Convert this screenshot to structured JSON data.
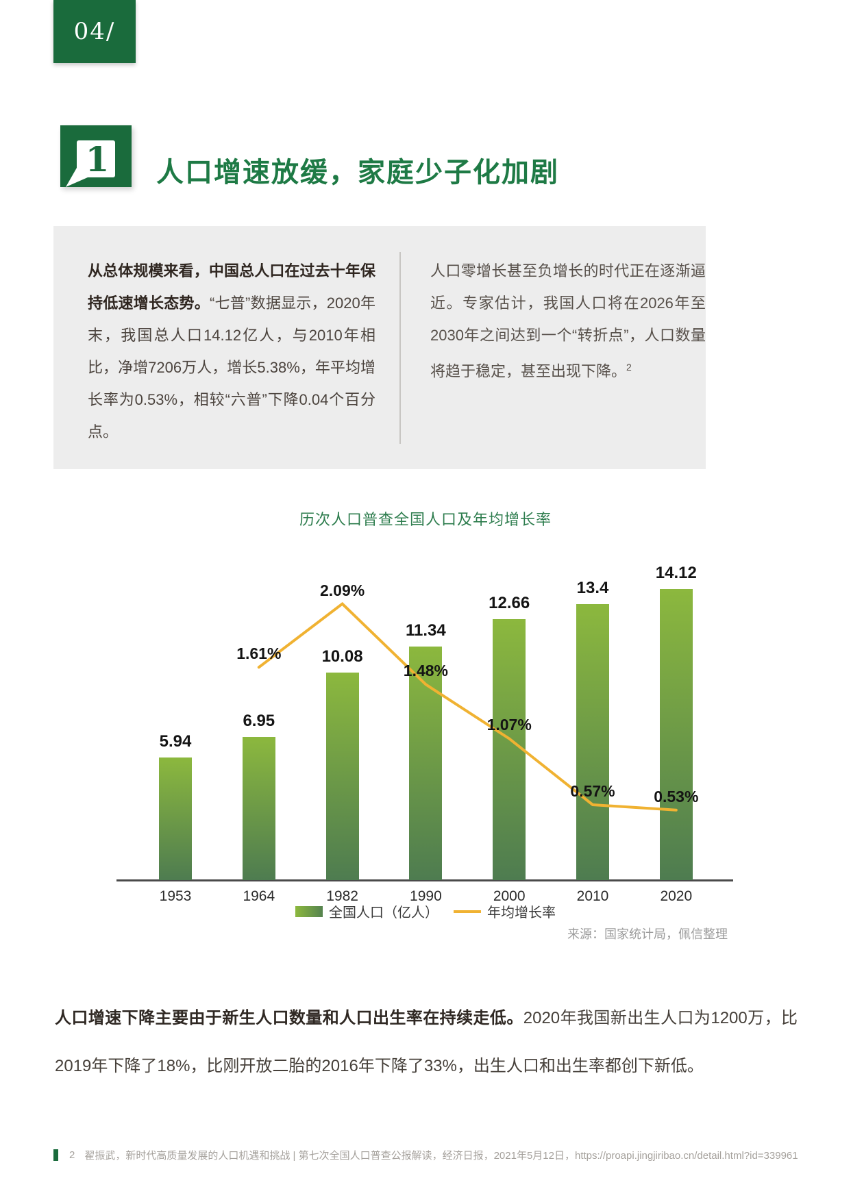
{
  "page": {
    "number": "04/"
  },
  "section": {
    "badge_number": "1",
    "title": "人口增速放缓，家庭少子化加剧"
  },
  "panel": {
    "left": {
      "lead": "从总体规模来看，中国总人口在过去十年保持低速增长态势。",
      "body": "“七普”数据显示，2020年末，我国总人口14.12亿人，与2010年相比，净增7206万人，增长5.38%，年平均增长率为0.53%，相较“六普”下降0.04个百分点。"
    },
    "right": {
      "body": "人口零增长甚至负增长的时代正在逐渐逼近。专家估计，我国人口将在2026年至2030年之间达到一个“转折点”，人口数量将趋于稳定，甚至出现下降。",
      "footnote_ref": "2"
    }
  },
  "chart_data": {
    "type": "bar",
    "title": "历次人口普查全国人口及年均增长率",
    "categories": [
      "1953",
      "1964",
      "1982",
      "1990",
      "2000",
      "2010",
      "2020"
    ],
    "series": [
      {
        "name": "全国人口（亿人）",
        "type": "bar",
        "values": [
          5.94,
          6.95,
          10.08,
          11.34,
          12.66,
          13.4,
          14.12
        ],
        "labels": [
          "5.94",
          "6.95",
          "10.08",
          "11.34",
          "12.66",
          "13.4",
          "14.12"
        ]
      },
      {
        "name": "年均增长率",
        "type": "line",
        "values": [
          null,
          1.61,
          2.09,
          1.48,
          1.07,
          0.57,
          0.53
        ],
        "labels": [
          null,
          "1.61%",
          "2.09%",
          "1.48%",
          "1.07%",
          "0.57%",
          "0.53%"
        ]
      }
    ],
    "ylim": [
      0,
      15
    ],
    "grid": false,
    "legend_position": "bottom",
    "source": "来源：国家统计局，佩信整理",
    "colors": {
      "bar_top": "#8CB83E",
      "bar_bottom": "#4E7C50",
      "line": "#F0B232"
    }
  },
  "body_paragraph": {
    "lead": "人口增速下降主要由于新生人口数量和人口出生率在持续走低。",
    "text": "2020年我国新出生人口为1200万，比2019年下降了18%，比刚开放二胎的2016年下降了33%，出生人口和出生率都创下新低。"
  },
  "footer": {
    "ref_number": "2",
    "text": "翟振武，新时代高质量发展的人口机遇和挑战 | 第七次全国人口普查公报解读，经济日报，2021年5月12日，https://proapi.jingjiribao.cn/detail.html?id=339961"
  },
  "colors": {
    "green_dark": "#1A6B3C",
    "green_heading": "#1E7A45",
    "panel_bg": "#EDEDED"
  }
}
